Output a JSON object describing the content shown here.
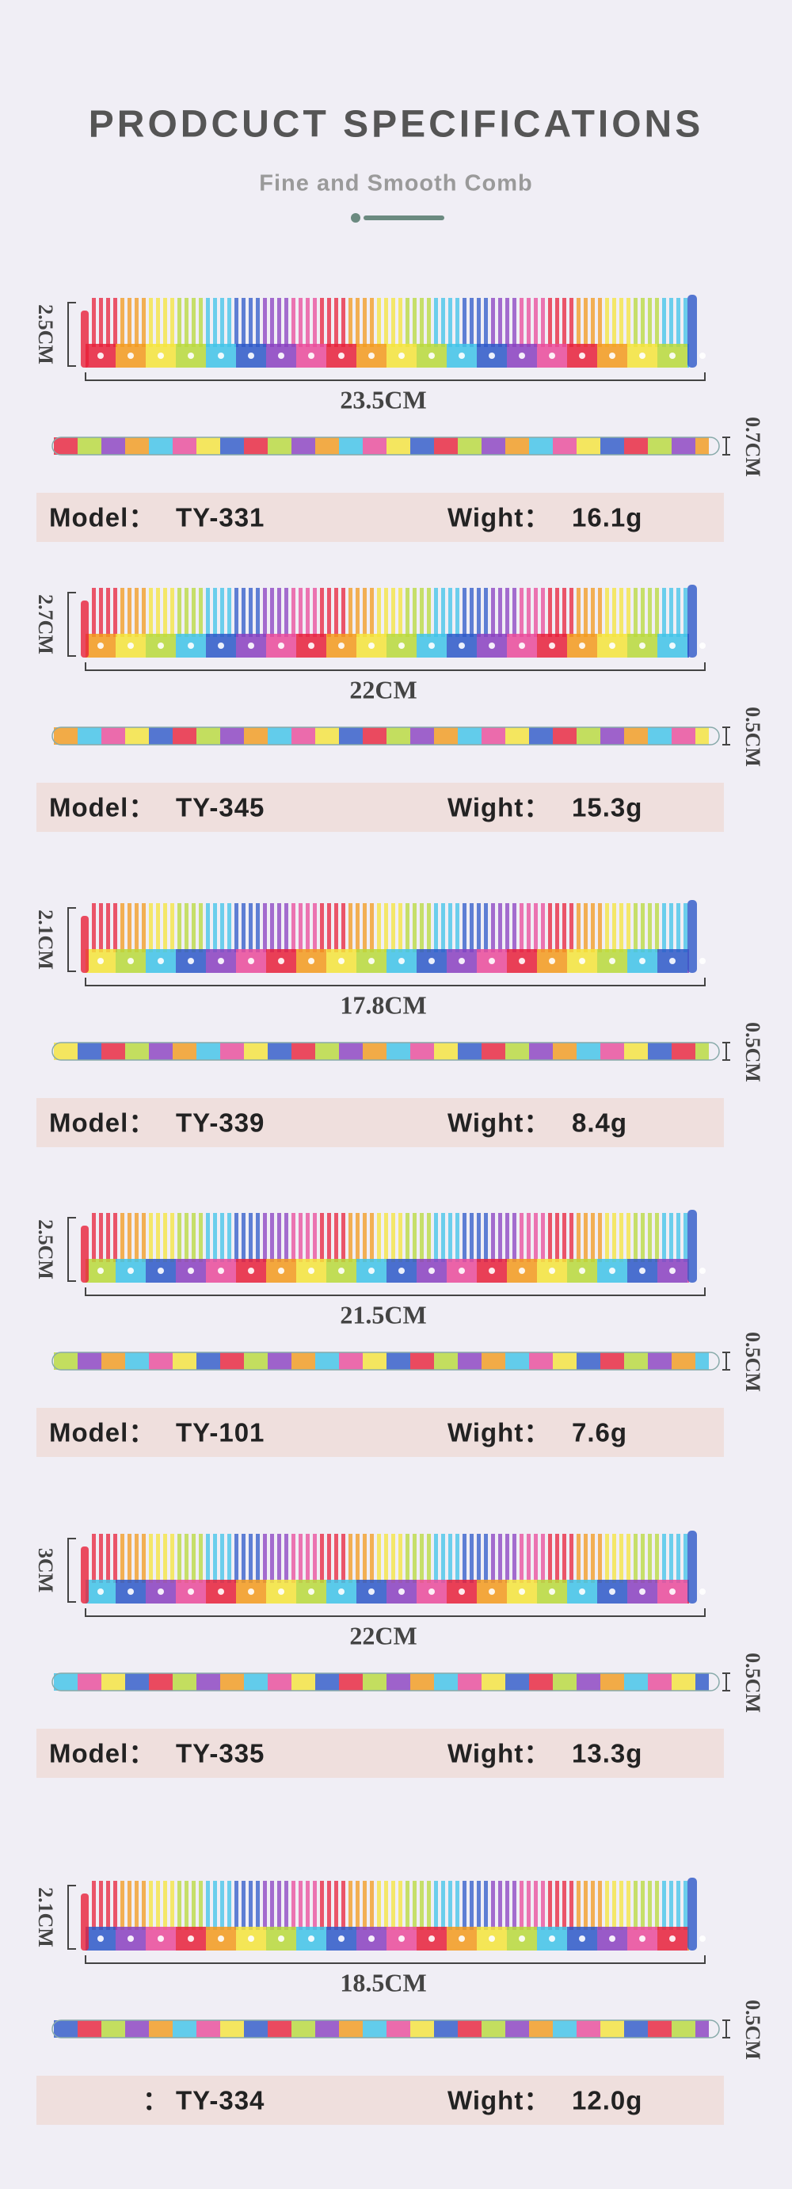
{
  "header": {
    "title": "PRODCUCT SPECIFICATIONS",
    "subtitle": "Fine and Smooth Comb"
  },
  "products": [
    {
      "height": "2.5CM",
      "length": "23.5CM",
      "thickness": "0.7CM",
      "model_label": "Model：",
      "model": "TY-331",
      "weight_label": "Wight：",
      "weight": "16.1g"
    },
    {
      "height": "2.7CM",
      "length": "22CM",
      "thickness": "0.5CM",
      "model_label": "Model：",
      "model": "TY-345",
      "weight_label": "Wight：",
      "weight": "15.3g"
    },
    {
      "height": "2.1CM",
      "length": "17.8CM",
      "thickness": "0.5CM",
      "model_label": "Model：",
      "model": "TY-339",
      "weight_label": "Wight：",
      "weight": "8.4g"
    },
    {
      "height": "2.5CM",
      "length": "21.5CM",
      "thickness": "0.5CM",
      "model_label": "Model：",
      "model": "TY-101",
      "weight_label": "Wight：",
      "weight": "7.6g"
    },
    {
      "height": "3CM",
      "length": "22CM",
      "thickness": "0.5CM",
      "model_label": "Model：",
      "model": "TY-335",
      "weight_label": "Wight：",
      "weight": "13.3g"
    },
    {
      "height": "2.1CM",
      "length": "18.5CM",
      "thickness": "0.5CM",
      "model_label": "：",
      "model": "TY-334",
      "weight_label": "Wight：",
      "weight": "12.0g"
    }
  ]
}
